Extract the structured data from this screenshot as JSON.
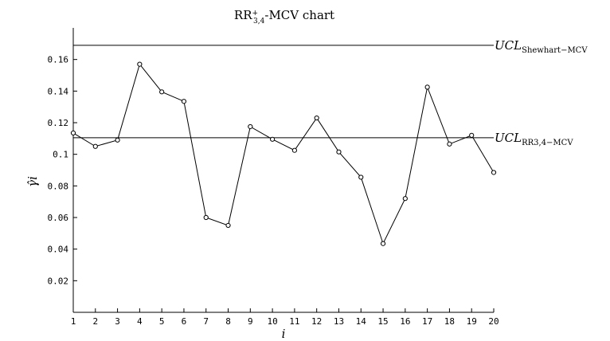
{
  "chart_data": {
    "type": "line",
    "title": {
      "main": "RR",
      "superscript": "+",
      "subscript": "3,4",
      "rest": "-MCV chart"
    },
    "xlabel": "i",
    "ylabel": "γ̂i",
    "x": [
      1,
      2,
      3,
      4,
      5,
      6,
      7,
      8,
      9,
      10,
      11,
      12,
      13,
      14,
      15,
      16,
      17,
      18,
      19,
      20
    ],
    "series": [
      {
        "values": [
          0.1135,
          0.105,
          0.109,
          0.157,
          0.1395,
          0.1335,
          0.06,
          0.055,
          0.1175,
          0.1095,
          0.1025,
          0.123,
          0.1015,
          0.0855,
          0.0435,
          0.072,
          0.1425,
          0.1065,
          0.112,
          0.0885
        ]
      }
    ],
    "xlim": [
      1,
      20
    ],
    "ylim": [
      0,
      0.18
    ],
    "x_ticks": [
      "1",
      "2",
      "3",
      "4",
      "5",
      "6",
      "7",
      "8",
      "9",
      "10",
      "11",
      "12",
      "13",
      "14",
      "15",
      "16",
      "17",
      "18",
      "19",
      "20"
    ],
    "y_ticks": [
      {
        "value": 0.02,
        "label": "0.02"
      },
      {
        "value": 0.04,
        "label": "0.04"
      },
      {
        "value": 0.06,
        "label": "0.06"
      },
      {
        "value": 0.08,
        "label": "0.08"
      },
      {
        "value": 0.1,
        "label": "0.1"
      },
      {
        "value": 0.12,
        "label": "0.12"
      },
      {
        "value": 0.14,
        "label": "0.14"
      },
      {
        "value": 0.16,
        "label": "0.16"
      }
    ],
    "grid": false,
    "control_limits": [
      {
        "value": 0.169,
        "label_main": "UCL",
        "label_sub": "Shewhart−MCV"
      },
      {
        "value": 0.1105,
        "label_main": "UCL",
        "label_sub": "RR3,4−MCV"
      }
    ]
  }
}
